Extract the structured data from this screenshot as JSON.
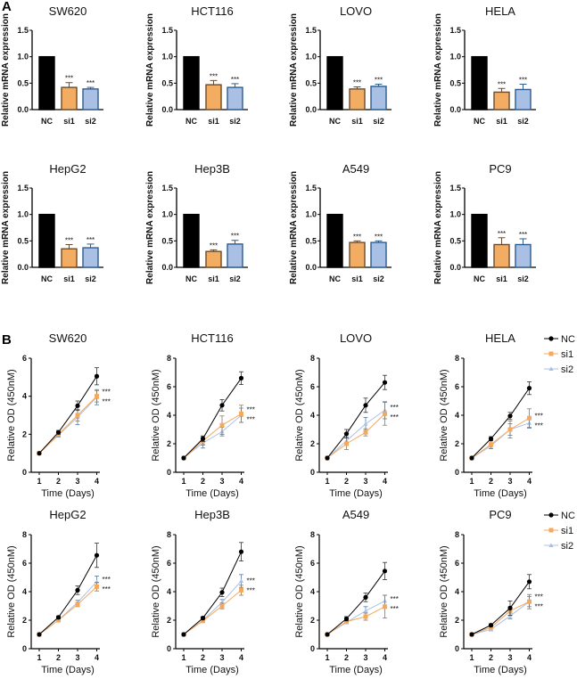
{
  "panel_labels": {
    "a": "A",
    "b": "B"
  },
  "colors": {
    "NC": "#000000",
    "si1": "#f2ad62",
    "si1_edge": "#6b4b2b",
    "si2": "#a9c0e4",
    "si2_edge": "#2d5c8e",
    "si1_line": "#f5a95c",
    "si2_line": "#a9c1e8"
  },
  "legend": [
    "NC",
    "si1",
    "si2"
  ],
  "significance": "***",
  "chart_data": [
    {
      "panel": "A",
      "type": "bar",
      "title": "SW620",
      "ylabel": "Relative mRNA expression",
      "categories": [
        "NC",
        "si1",
        "si2"
      ],
      "values": [
        1,
        0.42,
        0.39
      ],
      "errors": [
        0,
        0.09,
        0.03
      ],
      "ylim": [
        0,
        1.5
      ],
      "yticks": [
        "0.0",
        "0.5",
        "1.0",
        "1.5"
      ]
    },
    {
      "panel": "A",
      "type": "bar",
      "title": "HCT116",
      "ylabel": "Relative mRNA expression",
      "categories": [
        "NC",
        "si1",
        "si2"
      ],
      "values": [
        1,
        0.47,
        0.42
      ],
      "errors": [
        0,
        0.08,
        0.07
      ],
      "ylim": [
        0,
        1.5
      ],
      "yticks": [
        "0.0",
        "0.5",
        "1.0",
        "1.5"
      ]
    },
    {
      "panel": "A",
      "type": "bar",
      "title": "LOVO",
      "ylabel": "Relative mRNA expression",
      "categories": [
        "NC",
        "si1",
        "si2"
      ],
      "values": [
        1,
        0.39,
        0.44
      ],
      "errors": [
        0,
        0.04,
        0.04
      ],
      "ylim": [
        0,
        1.5
      ],
      "yticks": [
        "0.0",
        "0.5",
        "1.0",
        "1.5"
      ]
    },
    {
      "panel": "A",
      "type": "bar",
      "title": "HELA",
      "ylabel": "Relative mRNA expression",
      "categories": [
        "NC",
        "si1",
        "si2"
      ],
      "values": [
        1,
        0.33,
        0.38
      ],
      "errors": [
        0,
        0.07,
        0.1
      ],
      "ylim": [
        0,
        1.5
      ],
      "yticks": [
        "0.0",
        "0.5",
        "1.0",
        "1.5"
      ]
    },
    {
      "panel": "A",
      "type": "bar",
      "title": "HepG2",
      "ylabel": "Relative mRNA expression",
      "categories": [
        "NC",
        "si1",
        "si2"
      ],
      "values": [
        1,
        0.35,
        0.37
      ],
      "errors": [
        0,
        0.08,
        0.07
      ],
      "ylim": [
        0,
        1.5
      ],
      "yticks": [
        "0.0",
        "0.5",
        "1.0",
        "1.5"
      ]
    },
    {
      "panel": "A",
      "type": "bar",
      "title": "Hep3B",
      "ylabel": "Relative mRNA expression",
      "categories": [
        "NC",
        "si1",
        "si2"
      ],
      "values": [
        1,
        0.3,
        0.44
      ],
      "errors": [
        0,
        0.03,
        0.07
      ],
      "ylim": [
        0,
        1.5
      ],
      "yticks": [
        "0.0",
        "0.5",
        "1.0",
        "1.5"
      ]
    },
    {
      "panel": "A",
      "type": "bar",
      "title": "A549",
      "ylabel": "Relative mRNA expression",
      "categories": [
        "NC",
        "si1",
        "si2"
      ],
      "values": [
        1,
        0.47,
        0.47
      ],
      "errors": [
        0,
        0.03,
        0.03
      ],
      "ylim": [
        0,
        1.5
      ],
      "yticks": [
        "0.0",
        "0.5",
        "1.0",
        "1.5"
      ]
    },
    {
      "panel": "A",
      "type": "bar",
      "title": "PC9",
      "ylabel": "Relative mRNA expression",
      "categories": [
        "NC",
        "si1",
        "si2"
      ],
      "values": [
        1,
        0.43,
        0.43
      ],
      "errors": [
        0,
        0.13,
        0.11
      ],
      "ylim": [
        0,
        1.5
      ],
      "yticks": [
        "0.0",
        "0.5",
        "1.0",
        "1.5"
      ]
    },
    {
      "panel": "B",
      "type": "line",
      "title": "SW620",
      "ylabel": "Relative OD (450nM)",
      "xlabel": "Time (Days)",
      "x": [
        1,
        2,
        3,
        4
      ],
      "ylim": [
        0,
        6
      ],
      "yticks": [
        "0",
        "2",
        "4",
        "6"
      ],
      "series": [
        {
          "name": "NC",
          "values": [
            1,
            2.1,
            3.5,
            5.05
          ],
          "errors": [
            0,
            0.1,
            0.25,
            0.45
          ]
        },
        {
          "name": "si1",
          "values": [
            1,
            2.0,
            3.0,
            4.0
          ],
          "errors": [
            0,
            0.1,
            0.3,
            0.3
          ]
        },
        {
          "name": "si2",
          "values": [
            1,
            1.95,
            2.9,
            3.95
          ],
          "errors": [
            0,
            0.1,
            0.4,
            0.4
          ]
        }
      ]
    },
    {
      "panel": "B",
      "type": "line",
      "title": "HCT116",
      "ylabel": "Relative OD (450nM)",
      "xlabel": "Time (Days)",
      "x": [
        1,
        2,
        3,
        4
      ],
      "ylim": [
        0,
        8
      ],
      "yticks": [
        "0",
        "2",
        "4",
        "6",
        "8"
      ],
      "series": [
        {
          "name": "NC",
          "values": [
            1,
            2.35,
            4.7,
            6.6
          ],
          "errors": [
            0,
            0.2,
            0.4,
            0.45
          ]
        },
        {
          "name": "si1",
          "values": [
            1,
            2.2,
            3.3,
            4.1
          ],
          "errors": [
            0,
            0.3,
            0.65,
            0.6
          ]
        },
        {
          "name": "si2",
          "values": [
            1,
            2.05,
            2.85,
            4.0
          ],
          "errors": [
            0,
            0.35,
            0.3,
            0.5
          ]
        }
      ]
    },
    {
      "panel": "B",
      "type": "line",
      "title": "LOVO",
      "ylabel": "Relative OD (450nM)",
      "xlabel": "Time (Days)",
      "x": [
        1,
        2,
        3,
        4
      ],
      "ylim": [
        0,
        8
      ],
      "yticks": [
        "0",
        "2",
        "4",
        "6",
        "8"
      ],
      "series": [
        {
          "name": "NC",
          "values": [
            1,
            2.7,
            4.7,
            6.3
          ],
          "errors": [
            0,
            0.3,
            0.5,
            0.5
          ]
        },
        {
          "name": "si1",
          "values": [
            1,
            2.0,
            2.8,
            4.1
          ],
          "errors": [
            0,
            0.4,
            0.25,
            0.8
          ]
        },
        {
          "name": "si2",
          "values": [
            1,
            2.2,
            3.4,
            4.35
          ],
          "errors": [
            0,
            0.3,
            0.45,
            0.6
          ]
        }
      ]
    },
    {
      "panel": "B",
      "type": "line",
      "title": "HELA",
      "ylabel": "Relative OD (450nM)",
      "xlabel": "Time (Days)",
      "x": [
        1,
        2,
        3,
        4
      ],
      "ylim": [
        0,
        8
      ],
      "yticks": [
        "0",
        "2",
        "4",
        "6",
        "8"
      ],
      "series": [
        {
          "name": "NC",
          "values": [
            1,
            2.35,
            3.95,
            5.9
          ],
          "errors": [
            0,
            0.15,
            0.25,
            0.45
          ]
        },
        {
          "name": "si1",
          "values": [
            1,
            1.95,
            3.0,
            3.8
          ],
          "errors": [
            0,
            0.3,
            0.6,
            0.65
          ]
        },
        {
          "name": "si2",
          "values": [
            1,
            1.85,
            3.0,
            3.45
          ],
          "errors": [
            0,
            0.2,
            0.4,
            0.35
          ]
        }
      ]
    },
    {
      "panel": "B",
      "type": "line",
      "title": "HepG2",
      "ylabel": "Relative OD (450nM)",
      "xlabel": "Time (Days)",
      "x": [
        1,
        2,
        3,
        4
      ],
      "ylim": [
        0,
        8
      ],
      "yticks": [
        "0",
        "2",
        "4",
        "6",
        "8"
      ],
      "series": [
        {
          "name": "NC",
          "values": [
            1,
            2.2,
            4.1,
            6.55
          ],
          "errors": [
            0,
            0.1,
            0.3,
            0.85
          ]
        },
        {
          "name": "si1",
          "values": [
            1,
            2.0,
            3.1,
            4.35
          ],
          "errors": [
            0,
            0.05,
            0.15,
            0.3
          ]
        },
        {
          "name": "si2",
          "values": [
            1,
            2.0,
            3.25,
            4.7
          ],
          "errors": [
            0,
            0.05,
            0.15,
            0.4
          ]
        }
      ]
    },
    {
      "panel": "B",
      "type": "line",
      "title": "Hep3B",
      "ylabel": "Relative OD (450nM)",
      "xlabel": "Time (Days)",
      "x": [
        1,
        2,
        3,
        4
      ],
      "ylim": [
        0,
        8
      ],
      "yticks": [
        "0",
        "2",
        "4",
        "6",
        "8"
      ],
      "series": [
        {
          "name": "NC",
          "values": [
            1,
            2.15,
            3.95,
            6.8
          ],
          "errors": [
            0,
            0.1,
            0.3,
            0.65
          ]
        },
        {
          "name": "si1",
          "values": [
            1,
            1.95,
            3.0,
            4.1
          ],
          "errors": [
            0,
            0.05,
            0.2,
            0.35
          ]
        },
        {
          "name": "si2",
          "values": [
            1,
            2.0,
            3.25,
            4.75
          ],
          "errors": [
            0,
            0.05,
            0.2,
            0.45
          ]
        }
      ]
    },
    {
      "panel": "B",
      "type": "line",
      "title": "A549",
      "ylabel": "Relative OD (450nM)",
      "xlabel": "Time (Days)",
      "x": [
        1,
        2,
        3,
        4
      ],
      "ylim": [
        0,
        8
      ],
      "yticks": [
        "0",
        "2",
        "4",
        "6",
        "8"
      ],
      "series": [
        {
          "name": "NC",
          "values": [
            1,
            2.1,
            3.6,
            5.45
          ],
          "errors": [
            0,
            0.15,
            0.3,
            0.6
          ]
        },
        {
          "name": "si1",
          "values": [
            1,
            1.9,
            2.25,
            2.95
          ],
          "errors": [
            0,
            0.1,
            0.25,
            0.8
          ]
        },
        {
          "name": "si2",
          "values": [
            1,
            1.85,
            2.65,
            3.35
          ],
          "errors": [
            0,
            0.1,
            0.3,
            0.4
          ]
        }
      ]
    },
    {
      "panel": "B",
      "type": "line",
      "title": "PC9",
      "ylabel": "Relative OD (450nM)",
      "xlabel": "Time (Days)",
      "x": [
        1,
        2,
        3,
        4
      ],
      "ylim": [
        0,
        8
      ],
      "yticks": [
        "0",
        "2",
        "4",
        "6",
        "8"
      ],
      "series": [
        {
          "name": "NC",
          "values": [
            1,
            1.65,
            2.85,
            4.7
          ],
          "errors": [
            0,
            0.1,
            0.5,
            0.5
          ]
        },
        {
          "name": "si1",
          "values": [
            1,
            1.5,
            2.65,
            3.3
          ],
          "errors": [
            0,
            0.1,
            0.3,
            0.35
          ]
        },
        {
          "name": "si2",
          "values": [
            1,
            1.35,
            2.3,
            3.3
          ],
          "errors": [
            0,
            0.1,
            0.2,
            0.5
          ]
        }
      ]
    }
  ]
}
